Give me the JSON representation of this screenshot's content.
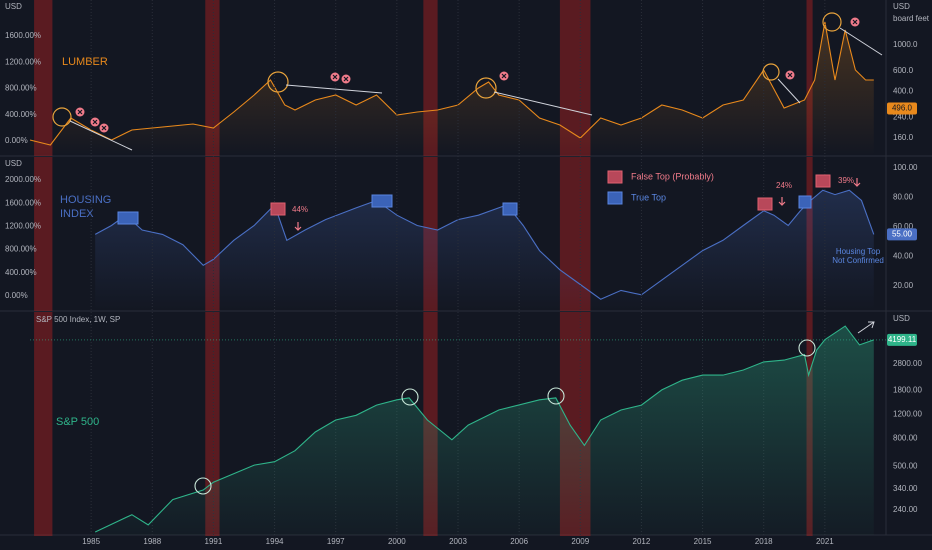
{
  "chart_data": [
    {
      "type": "line",
      "label": [
        "LUMBER"
      ],
      "unit_left": "USD",
      "unit_right": "USD",
      "unit_name": "board feet",
      "xlim": [
        1982,
        2024
      ],
      "shaded_x_ranges": [
        [
          1982.2,
          1983.1
        ],
        [
          1990.6,
          1991.3
        ],
        [
          2001.3,
          2002.0
        ],
        [
          2008.0,
          2009.5
        ],
        [
          2020.1,
          2020.4
        ]
      ],
      "x": [
        1982,
        1983,
        1984,
        1985,
        1986,
        1987,
        1988,
        1990,
        1991,
        1992,
        1993,
        1993.8,
        1994.5,
        1995,
        1996,
        1997,
        1998,
        1999,
        2000,
        2001,
        2002,
        2003,
        2004,
        2004.5,
        2005,
        2006,
        2007,
        2008,
        2009,
        2010,
        2011,
        2012,
        2013,
        2014,
        2015,
        2016,
        2017,
        2018,
        2019,
        2020,
        2020.5,
        2021,
        2021.5,
        2022,
        2022.5,
        2023,
        2023.4
      ],
      "series": [
        {
          "color": "#e8891c",
          "values": [
            15,
            -61,
            351,
            168,
            15,
            168,
            198,
            259,
            198,
            442,
            701,
            930,
            549,
            473,
            625,
            701,
            549,
            701,
            396,
            442,
            473,
            549,
            808,
            899,
            701,
            625,
            351,
            244,
            46,
            351,
            244,
            351,
            549,
            473,
            351,
            549,
            625,
            1082,
            503,
            625,
            930,
            1814,
            930,
            1692,
            1082,
            930,
            930
          ]
        }
      ],
      "ylim": [
        -213,
        2149
      ],
      "yticks": [
        {
          "value": 1600,
          "label": "1600.00%"
        },
        {
          "value": 1200,
          "label": "1200.00%"
        },
        {
          "value": 800,
          "label": "800.00%"
        },
        {
          "value": 400,
          "label": "400.00%"
        },
        {
          "value": 0,
          "label": "0.00%"
        }
      ],
      "y2lim": [
        114,
        2430
      ],
      "y2_log": true,
      "y2ticks": [
        {
          "value": 1000,
          "label": "1000.0"
        },
        {
          "value": 600,
          "label": "600.0"
        },
        {
          "value": 400,
          "label": "400.0"
        },
        {
          "value": 240,
          "label": "240.0"
        },
        {
          "value": 160,
          "label": "160.0"
        }
      ],
      "last_value": {
        "value": 496,
        "label": "496.0"
      }
    },
    {
      "type": "line",
      "label": [
        "HOUSING",
        "INDEX"
      ],
      "unit_left": "USD",
      "xlim": [
        1982,
        2024
      ],
      "shaded_x_ranges": [
        [
          1982.2,
          1983.1
        ],
        [
          1990.6,
          1991.3
        ],
        [
          2001.3,
          2002.0
        ],
        [
          2008.0,
          2009.5
        ],
        [
          2020.1,
          2020.4
        ]
      ],
      "x": [
        1985.2,
        1986,
        1986.7,
        1987.5,
        1988.5,
        1989.5,
        1990.5,
        1991,
        1992,
        1993,
        1994,
        1994.6,
        1995.5,
        1996.5,
        1998,
        1999,
        2000,
        2001,
        2002,
        2003,
        2004,
        2005.4,
        2006.2,
        2007,
        2008,
        2009,
        2010,
        2011,
        2012,
        2013,
        2014,
        2015,
        2016,
        2017,
        2018,
        2018.5,
        2019.2,
        2019.8,
        2020.3,
        2020.9,
        2021.5,
        2022.2,
        2022.8,
        2023.4
      ],
      "series": [
        {
          "color": "#4a6fc4",
          "axis": "y2",
          "values": [
            55,
            61,
            68,
            58,
            55,
            48,
            34,
            38,
            51,
            61,
            75,
            51,
            58,
            65,
            73,
            78,
            68,
            61,
            58,
            65,
            68,
            75,
            61,
            44,
            31,
            21,
            11,
            17,
            14,
            24,
            34,
            44,
            51,
            61,
            71,
            68,
            61,
            71,
            78,
            85,
            82,
            85,
            78,
            55
          ]
        }
      ],
      "ylim": [
        -241,
        2397
      ],
      "yticks": [
        {
          "value": 2000,
          "label": "2000.00%"
        },
        {
          "value": 1600,
          "label": "1600.00%"
        },
        {
          "value": 1200,
          "label": "1200.00%"
        },
        {
          "value": 800,
          "label": "800.00%"
        },
        {
          "value": 400,
          "label": "400.00%"
        },
        {
          "value": 0,
          "label": "0.00%"
        }
      ],
      "y2lim": [
        3.7,
        107.5
      ],
      "y2ticks": [
        {
          "value": 100,
          "label": "100.00"
        },
        {
          "value": 80,
          "label": "80.00"
        },
        {
          "value": 60,
          "label": "60.00"
        },
        {
          "value": 40,
          "label": "40.00"
        },
        {
          "value": 20,
          "label": "20.00"
        }
      ],
      "last_value": {
        "value": 55,
        "label": "55.00"
      },
      "legend": [
        "False Top (Probably)",
        "True Top"
      ],
      "annotations": [
        "44%",
        "24%",
        "39%",
        "Housing Top",
        "Not Confirmed"
      ]
    },
    {
      "type": "line",
      "label": [
        "S&P 500"
      ],
      "title": "S&P 500 Index, 1W, SP",
      "unit_right": "USD",
      "xlim": [
        1982,
        2024
      ],
      "shaded_x_ranges": [
        [
          1982.2,
          1983.1
        ],
        [
          1990.6,
          1991.3
        ],
        [
          2001.3,
          2002.0
        ],
        [
          2008.0,
          2009.5
        ],
        [
          2020.1,
          2020.4
        ]
      ],
      "xticks": [
        1985,
        1988,
        1991,
        1994,
        1997,
        2000,
        2003,
        2006,
        2009,
        2012,
        2015,
        2018,
        2021
      ],
      "x": [
        1985.2,
        1987,
        1987.8,
        1989,
        1990.5,
        1991,
        1993,
        1994,
        1995,
        1996,
        1997,
        1998,
        1999,
        2000,
        2000.6,
        2001.5,
        2002.7,
        2003.5,
        2005,
        2007,
        2007.8,
        2008.5,
        2009.2,
        2010,
        2011,
        2012,
        2013,
        2014,
        2015,
        2016,
        2017,
        2018,
        2019,
        2020,
        2020.2,
        2020.6,
        2021,
        2022,
        2022.7,
        2023.4
      ],
      "series": [
        {
          "color": "#2fb48a",
          "axis": "y2",
          "values": [
            165,
            221,
            186,
            285,
            335,
            382,
            510,
            540,
            650,
            890,
            1090,
            1180,
            1400,
            1530,
            1580,
            1090,
            780,
            1000,
            1290,
            1530,
            1580,
            1000,
            710,
            1090,
            1290,
            1400,
            1810,
            2130,
            2320,
            2320,
            2530,
            2900,
            2990,
            3280,
            2320,
            3540,
            4220,
            5300,
            3860,
            4199.11
          ]
        }
      ],
      "y2lim": [
        157,
        6720
      ],
      "y2_log": true,
      "y2ticks": [
        {
          "value": 2800,
          "label": "2800.00"
        },
        {
          "value": 1800,
          "label": "1800.00"
        },
        {
          "value": 1200,
          "label": "1200.00"
        },
        {
          "value": 800,
          "label": "800.00"
        },
        {
          "value": 500,
          "label": "500.00"
        },
        {
          "value": 340,
          "label": "340.00"
        },
        {
          "value": 240,
          "label": "240.00"
        }
      ],
      "last_value": 4199.11
    }
  ]
}
